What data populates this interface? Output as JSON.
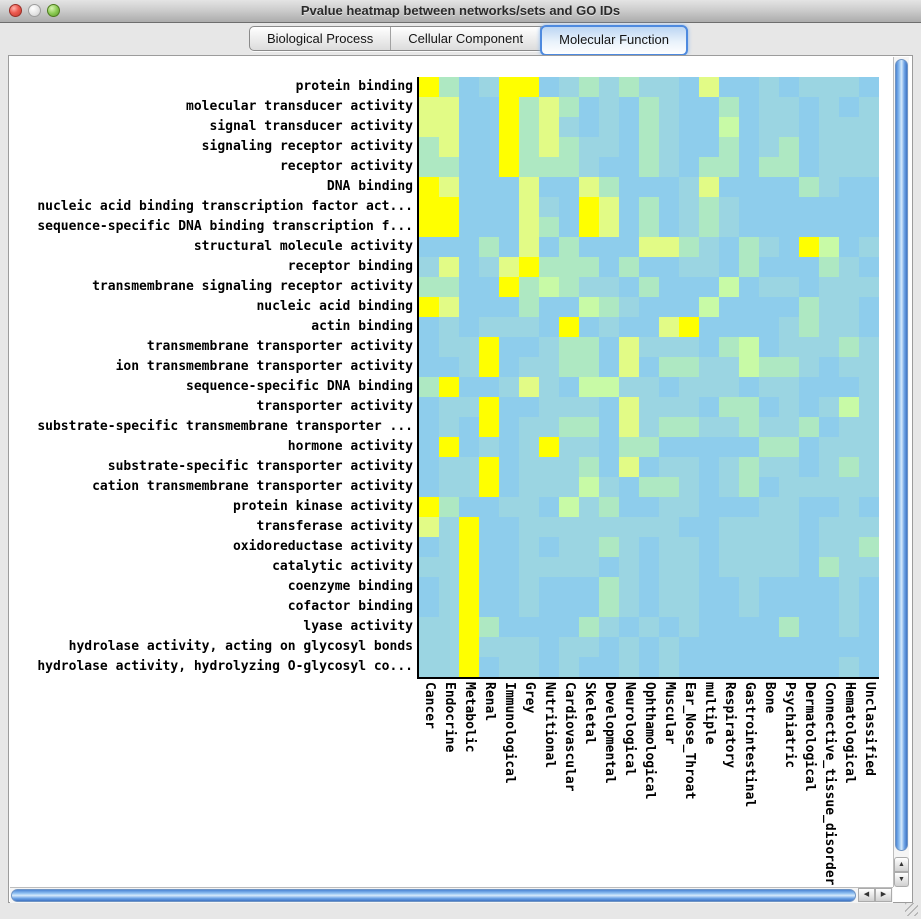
{
  "window": {
    "title": "Pvalue heatmap between networks/sets and GO IDs"
  },
  "tabs": [
    {
      "label": "Biological Process",
      "selected": false
    },
    {
      "label": "Cellular Component",
      "selected": false
    },
    {
      "label": "Molecular Function",
      "selected": true
    }
  ],
  "scrollbar": {
    "up_arrow": "▲",
    "down_arrow": "▼",
    "left_arrow": "◀",
    "right_arrow": "▶"
  },
  "chart_data": {
    "type": "heatmap",
    "title": "Pvalue heatmap between networks/sets and GO IDs",
    "value_scale": "color intensity levels 0-5 read from pixels; 0 = light blue (high p-value / no enrichment), 5 = bright yellow (low p-value / strong enrichment)",
    "rows": [
      "protein binding",
      "molecular transducer activity",
      "signal transducer activity",
      "signaling receptor activity",
      "receptor activity",
      "DNA binding",
      "nucleic acid binding transcription factor act...",
      "sequence-specific DNA binding transcription f...",
      "structural molecule activity",
      "receptor binding",
      "transmembrane signaling receptor activity",
      "nucleic acid binding",
      "actin binding",
      "transmembrane transporter activity",
      "ion transmembrane transporter activity",
      "sequence-specific DNA binding",
      "transporter activity",
      "substrate-specific transmembrane transporter ...",
      "hormone activity",
      "substrate-specific transporter activity",
      "cation transmembrane transporter activity",
      "protein kinase activity",
      "transferase activity",
      "oxidoreductase activity",
      "catalytic activity",
      "coenzyme binding",
      "cofactor binding",
      "lyase activity",
      "hydrolase activity, acting on glycosyl bonds",
      "hydrolase activity, hydrolyzing O-glycosyl co..."
    ],
    "columns": [
      "Cancer",
      "Endocrine",
      "Metabolic",
      "Renal",
      "Immunological",
      "Grey",
      "Nutritional",
      "Cardiovascular",
      "Skeletal",
      "Developmental",
      "Neurological",
      "Ophthamological",
      "Muscular",
      "Ear_Nose_Throat",
      "multiple",
      "Respiratory",
      "Gastrointestinal",
      "Bone",
      "Psychiatric",
      "Dermatological",
      "Connective_tissue_disorder",
      "Hematological",
      "Unclassified"
    ],
    "palette": [
      "#8ECDEC",
      "#9BD5E2",
      "#AEE8C2",
      "#C8FAA6",
      "#E2FB86",
      "#FFFF00"
    ],
    "values": [
      [
        5,
        2,
        0,
        1,
        5,
        5,
        0,
        1,
        2,
        1,
        2,
        1,
        1,
        0,
        4,
        0,
        0,
        1,
        0,
        1,
        1,
        1,
        0
      ],
      [
        4,
        4,
        0,
        0,
        5,
        2,
        4,
        2,
        0,
        1,
        0,
        2,
        1,
        0,
        0,
        2,
        0,
        1,
        1,
        0,
        1,
        0,
        1
      ],
      [
        4,
        4,
        0,
        0,
        5,
        2,
        4,
        1,
        0,
        1,
        0,
        2,
        1,
        0,
        0,
        3,
        0,
        1,
        1,
        0,
        1,
        1,
        1
      ],
      [
        2,
        4,
        0,
        0,
        5,
        2,
        4,
        2,
        1,
        1,
        0,
        2,
        1,
        0,
        0,
        2,
        0,
        1,
        2,
        0,
        1,
        1,
        1
      ],
      [
        2,
        2,
        0,
        0,
        5,
        2,
        2,
        2,
        1,
        0,
        0,
        2,
        1,
        0,
        2,
        2,
        0,
        2,
        2,
        0,
        1,
        1,
        1
      ],
      [
        5,
        4,
        0,
        0,
        0,
        4,
        0,
        0,
        4,
        2,
        0,
        0,
        0,
        1,
        4,
        0,
        0,
        0,
        0,
        2,
        1,
        0,
        0
      ],
      [
        5,
        5,
        0,
        0,
        0,
        4,
        1,
        0,
        5,
        4,
        0,
        2,
        0,
        1,
        2,
        1,
        0,
        0,
        0,
        0,
        0,
        0,
        0
      ],
      [
        5,
        5,
        0,
        0,
        0,
        4,
        2,
        0,
        5,
        4,
        0,
        2,
        0,
        1,
        2,
        1,
        0,
        0,
        0,
        0,
        0,
        0,
        0
      ],
      [
        0,
        0,
        0,
        2,
        0,
        4,
        0,
        2,
        0,
        0,
        0,
        4,
        4,
        2,
        1,
        0,
        2,
        1,
        0,
        5,
        3,
        0,
        1
      ],
      [
        1,
        4,
        0,
        1,
        4,
        5,
        2,
        2,
        2,
        0,
        2,
        0,
        0,
        1,
        1,
        0,
        2,
        0,
        0,
        0,
        2,
        1,
        0
      ],
      [
        2,
        2,
        0,
        0,
        5,
        2,
        3,
        2,
        1,
        1,
        0,
        2,
        0,
        0,
        0,
        3,
        0,
        1,
        1,
        0,
        1,
        1,
        1
      ],
      [
        5,
        4,
        0,
        0,
        0,
        2,
        0,
        0,
        3,
        2,
        1,
        0,
        0,
        0,
        3,
        0,
        0,
        0,
        0,
        2,
        1,
        1,
        0
      ],
      [
        0,
        1,
        0,
        1,
        1,
        1,
        0,
        5,
        0,
        1,
        0,
        0,
        4,
        5,
        0,
        0,
        0,
        0,
        1,
        2,
        1,
        1,
        0
      ],
      [
        0,
        1,
        1,
        5,
        0,
        0,
        1,
        2,
        2,
        0,
        4,
        1,
        1,
        1,
        0,
        2,
        3,
        0,
        1,
        1,
        1,
        2,
        1
      ],
      [
        0,
        0,
        1,
        5,
        0,
        1,
        1,
        2,
        2,
        0,
        4,
        0,
        2,
        2,
        1,
        1,
        3,
        2,
        2,
        1,
        0,
        1,
        1
      ],
      [
        2,
        5,
        0,
        0,
        1,
        4,
        1,
        0,
        3,
        3,
        1,
        1,
        0,
        1,
        1,
        1,
        0,
        1,
        1,
        0,
        0,
        0,
        1
      ],
      [
        0,
        1,
        1,
        5,
        0,
        0,
        1,
        1,
        1,
        0,
        4,
        1,
        1,
        1,
        0,
        2,
        2,
        0,
        1,
        0,
        1,
        3,
        1
      ],
      [
        0,
        1,
        0,
        5,
        0,
        1,
        1,
        2,
        2,
        0,
        4,
        1,
        2,
        2,
        1,
        1,
        2,
        1,
        1,
        2,
        0,
        1,
        1
      ],
      [
        0,
        5,
        0,
        1,
        0,
        1,
        5,
        1,
        1,
        0,
        2,
        2,
        0,
        0,
        0,
        0,
        0,
        2,
        2,
        0,
        1,
        1,
        1
      ],
      [
        0,
        1,
        1,
        5,
        0,
        1,
        1,
        1,
        2,
        0,
        4,
        0,
        1,
        1,
        0,
        1,
        2,
        1,
        1,
        0,
        1,
        2,
        1
      ],
      [
        0,
        1,
        1,
        5,
        0,
        1,
        1,
        1,
        3,
        1,
        0,
        2,
        2,
        1,
        0,
        1,
        2,
        0,
        1,
        1,
        1,
        1,
        1
      ],
      [
        5,
        2,
        0,
        0,
        1,
        1,
        0,
        3,
        1,
        2,
        0,
        0,
        1,
        1,
        0,
        0,
        0,
        1,
        1,
        0,
        0,
        1,
        0
      ],
      [
        4,
        1,
        5,
        0,
        0,
        1,
        1,
        1,
        1,
        1,
        1,
        1,
        1,
        0,
        0,
        1,
        1,
        1,
        1,
        0,
        1,
        1,
        1
      ],
      [
        0,
        1,
        5,
        0,
        0,
        1,
        0,
        1,
        1,
        2,
        1,
        0,
        1,
        1,
        0,
        1,
        1,
        1,
        1,
        0,
        1,
        1,
        2
      ],
      [
        1,
        1,
        5,
        0,
        0,
        1,
        1,
        1,
        1,
        0,
        1,
        0,
        1,
        1,
        0,
        1,
        1,
        1,
        1,
        0,
        2,
        1,
        1
      ],
      [
        0,
        1,
        5,
        0,
        0,
        1,
        0,
        0,
        0,
        2,
        1,
        0,
        1,
        1,
        0,
        0,
        1,
        0,
        0,
        0,
        0,
        1,
        0
      ],
      [
        0,
        1,
        5,
        0,
        0,
        1,
        0,
        0,
        0,
        2,
        1,
        0,
        1,
        1,
        0,
        0,
        1,
        0,
        0,
        0,
        0,
        1,
        0
      ],
      [
        1,
        1,
        5,
        2,
        0,
        0,
        0,
        0,
        2,
        1,
        0,
        1,
        0,
        1,
        0,
        0,
        0,
        0,
        2,
        0,
        0,
        1,
        0
      ],
      [
        1,
        1,
        5,
        1,
        1,
        1,
        0,
        1,
        1,
        0,
        1,
        0,
        1,
        0,
        0,
        0,
        0,
        0,
        0,
        0,
        0,
        0,
        0
      ],
      [
        1,
        1,
        5,
        0,
        1,
        1,
        0,
        1,
        0,
        0,
        1,
        0,
        1,
        0,
        0,
        0,
        0,
        0,
        0,
        0,
        0,
        1,
        0
      ]
    ]
  }
}
